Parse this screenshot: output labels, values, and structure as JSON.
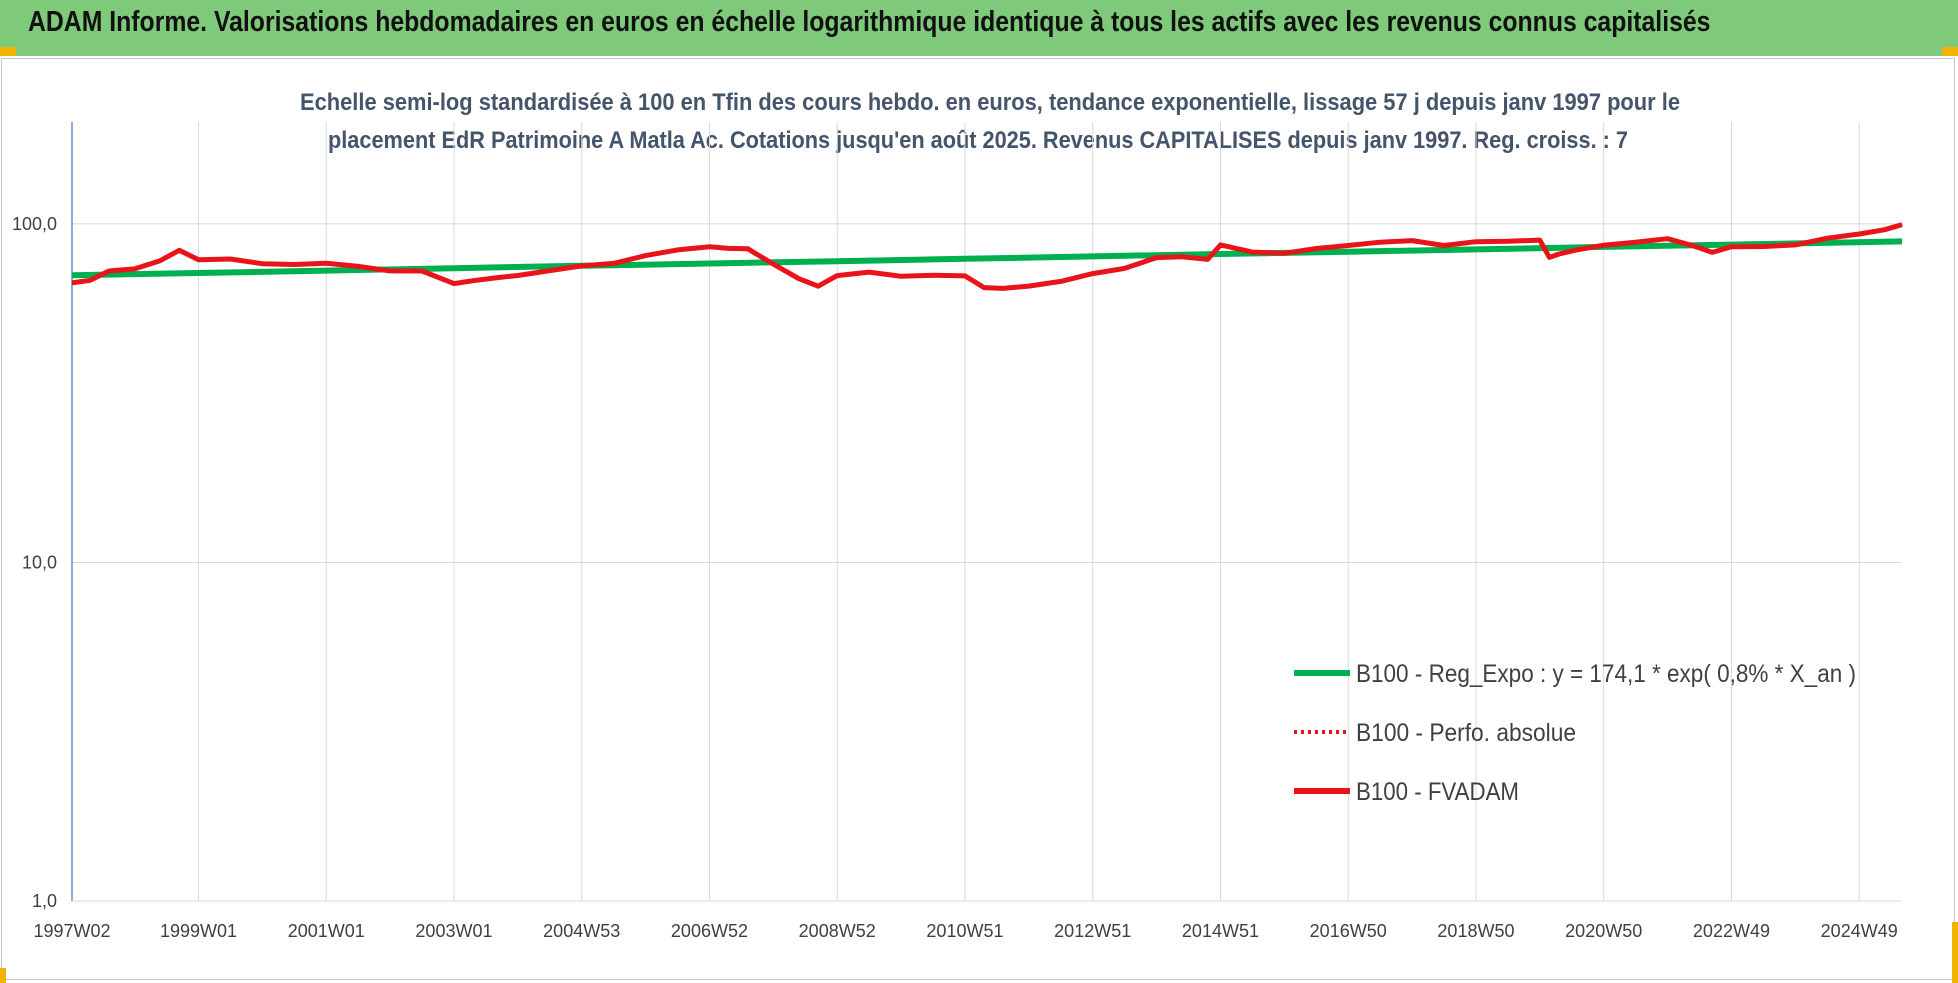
{
  "header": {
    "title": "ADAM Informe. Valorisations hebdomadaires en euros en échelle logarithmique identique à tous les actifs avec les revenus connus capitalisés"
  },
  "colors": {
    "header_bg": "#7ec97a",
    "trend": "#00b050",
    "perf": "#e8141a",
    "fvadam": "#e8141a",
    "grid": "#d9d9d9",
    "corner": "#f2b400"
  },
  "chart_data": {
    "type": "line",
    "title_lines": [
      "Echelle semi-log standardisée à 100 en Tfin des cours hebdo. en euros, tendance exponentielle, lissage 57 j depuis janv 1997 pour le",
      "placement EdR Patrimoine A Matla Ac. Cotations jusqu'en août 2025. Revenus CAPITALISES depuis janv 1997. Reg. croiss. : 7"
    ],
    "y_scale": "log",
    "ylim": [
      1,
      200
    ],
    "y_ticks": [
      {
        "value": 1,
        "label": "1,0"
      },
      {
        "value": 10,
        "label": "10,0"
      },
      {
        "value": 100,
        "label": "100,0"
      }
    ],
    "xlim": [
      1997.02,
      2025.67
    ],
    "x_ticks": [
      {
        "label": "1997W02",
        "year": 1997.02
      },
      {
        "label": "1999W01",
        "year": 1999.0
      },
      {
        "label": "2001W01",
        "year": 2001.0
      },
      {
        "label": "2003W01",
        "year": 2003.0
      },
      {
        "label": "2004W53",
        "year": 2005.0
      },
      {
        "label": "2006W52",
        "year": 2007.0
      },
      {
        "label": "2008W52",
        "year": 2009.0
      },
      {
        "label": "2010W51",
        "year": 2011.0
      },
      {
        "label": "2012W51",
        "year": 2013.0
      },
      {
        "label": "2014W51",
        "year": 2015.0
      },
      {
        "label": "2016W50",
        "year": 2017.0
      },
      {
        "label": "2018W50",
        "year": 2019.0
      },
      {
        "label": "2020W50",
        "year": 2021.0
      },
      {
        "label": "2022W49",
        "year": 2023.0
      },
      {
        "label": "2024W49",
        "year": 2025.0
      }
    ],
    "grid": true,
    "legend_position": "bottom-right",
    "series": [
      {
        "name": "B100 - Reg_Expo : y = 174,1 * exp( 0,8% *  X_an )",
        "style": "solid-green",
        "x": [
          1997.02,
          1999,
          2001,
          2003,
          2005,
          2007,
          2009,
          2011,
          2013,
          2015,
          2017,
          2019,
          2021,
          2023,
          2025.67
        ],
        "y": [
          70.5,
          71.6,
          72.8,
          74.0,
          75.2,
          76.4,
          77.6,
          78.9,
          80.2,
          81.5,
          82.8,
          84.1,
          85.5,
          86.9,
          88.8
        ]
      },
      {
        "name": "B100 - Perfo. absolue",
        "style": "dotted-red",
        "x": [
          1997.02,
          1997.3,
          1997.6,
          1998.0,
          1998.4,
          1998.7,
          1999.0,
          1999.5,
          2000.0,
          2000.5,
          2001.0,
          2001.5,
          2002.0,
          2002.5,
          2003.0,
          2003.3,
          2003.7,
          2004.0,
          2004.5,
          2005.0,
          2005.5,
          2006.0,
          2006.5,
          2007.0,
          2007.3,
          2007.6,
          2008.0,
          2008.4,
          2008.7,
          2009.0,
          2009.5,
          2010.0,
          2010.5,
          2011.0,
          2011.3,
          2011.6,
          2012.0,
          2012.5,
          2013.0,
          2013.5,
          2014.0,
          2014.4,
          2014.8,
          2015.0,
          2015.5,
          2016.0,
          2016.5,
          2017.0,
          2017.5,
          2018.0,
          2018.5,
          2019.0,
          2019.5,
          2020.0,
          2020.15,
          2020.3,
          2020.6,
          2021.0,
          2021.5,
          2022.0,
          2022.4,
          2022.7,
          2023.0,
          2023.5,
          2024.0,
          2024.5,
          2025.0,
          2025.4,
          2025.67
        ],
        "y": [
          67,
          68.5,
          72,
          74,
          78,
          83,
          79,
          78.5,
          76,
          76.5,
          76,
          75,
          73,
          72,
          67,
          68,
          69,
          71,
          72.5,
          75,
          77,
          80,
          84,
          86,
          84,
          85,
          76,
          68.5,
          66,
          70,
          72,
          70.5,
          70,
          70.5,
          65,
          64,
          66,
          67.5,
          71,
          74.5,
          79,
          80,
          79,
          86,
          83,
          82,
          84,
          87,
          88,
          89,
          87,
          88,
          89,
          90,
          79,
          82,
          84,
          86,
          89,
          90,
          86,
          83,
          85,
          86,
          87,
          90,
          94,
          96,
          99
        ]
      },
      {
        "name": "B100 - FVADAM",
        "style": "solid-red",
        "x": [
          1997.02,
          1997.3,
          1997.6,
          1998.0,
          1998.4,
          1998.7,
          1999.0,
          1999.5,
          2000.0,
          2000.5,
          2001.0,
          2001.5,
          2002.0,
          2002.5,
          2003.0,
          2003.3,
          2003.7,
          2004.0,
          2004.5,
          2005.0,
          2005.5,
          2006.0,
          2006.5,
          2007.0,
          2007.3,
          2007.6,
          2008.0,
          2008.4,
          2008.7,
          2009.0,
          2009.5,
          2010.0,
          2010.5,
          2011.0,
          2011.3,
          2011.6,
          2012.0,
          2012.5,
          2013.0,
          2013.5,
          2014.0,
          2014.4,
          2014.8,
          2015.0,
          2015.5,
          2016.0,
          2016.5,
          2017.0,
          2017.5,
          2018.0,
          2018.5,
          2019.0,
          2019.5,
          2020.0,
          2020.15,
          2020.3,
          2020.6,
          2021.0,
          2021.5,
          2022.0,
          2022.4,
          2022.7,
          2023.0,
          2023.5,
          2024.0,
          2024.5,
          2025.0,
          2025.4,
          2025.67
        ],
        "y": [
          67,
          68.5,
          72,
          74,
          78,
          83,
          79,
          78.5,
          76,
          76.5,
          76,
          75,
          73,
          72,
          67,
          68,
          69,
          71,
          72.5,
          75,
          77,
          80,
          84,
          86,
          84,
          85,
          76,
          68.5,
          66,
          70,
          72,
          70.5,
          70,
          70.5,
          65,
          64,
          66,
          67.5,
          71,
          74.5,
          79,
          80,
          79,
          86,
          83,
          82,
          84,
          87,
          88,
          89,
          87,
          88,
          89,
          90,
          79,
          82,
          84,
          86,
          89,
          90,
          86,
          83,
          85,
          86,
          87,
          90,
          94,
          96,
          99
        ]
      }
    ]
  }
}
